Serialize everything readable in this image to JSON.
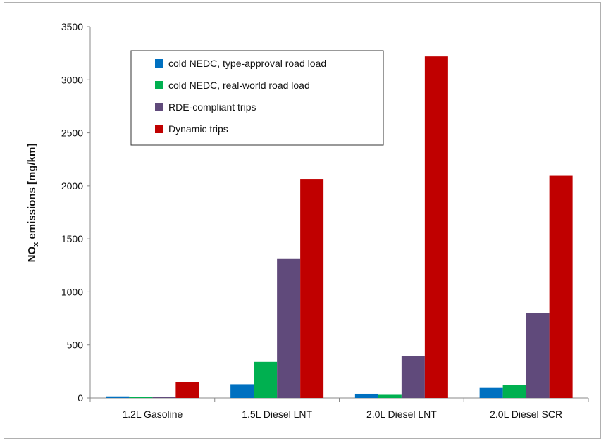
{
  "chart_data": {
    "type": "bar",
    "ylabel": "NOx emissions [mg/km]",
    "ylabel_main": "NO",
    "ylabel_sub": "x",
    "ylabel_rest": " emissions [mg/km]",
    "ylim": [
      0,
      3500
    ],
    "yticks": [
      "0",
      "500",
      "1000",
      "1500",
      "2000",
      "2500",
      "3000",
      "3500"
    ],
    "ytick_values": [
      0,
      500,
      1000,
      1500,
      2000,
      2500,
      3000,
      3500
    ],
    "grid": false,
    "legend_position": "top-left",
    "categories": [
      "1.2L Gasoline",
      "1.5L Diesel LNT",
      "2.0L Diesel LNT",
      "2.0L Diesel SCR"
    ],
    "series": [
      {
        "name": "cold NEDC, type-approval road load",
        "color": "#0070c0",
        "values": [
          15,
          130,
          40,
          95
        ]
      },
      {
        "name": "cold NEDC, real-world road load",
        "color": "#00b050",
        "values": [
          12,
          340,
          30,
          120
        ]
      },
      {
        "name": "RDE-compliant trips",
        "color": "#604a7b",
        "values": [
          10,
          1310,
          395,
          800
        ]
      },
      {
        "name": "Dynamic trips",
        "color": "#c00000",
        "values": [
          150,
          2065,
          3220,
          2095
        ]
      }
    ]
  }
}
